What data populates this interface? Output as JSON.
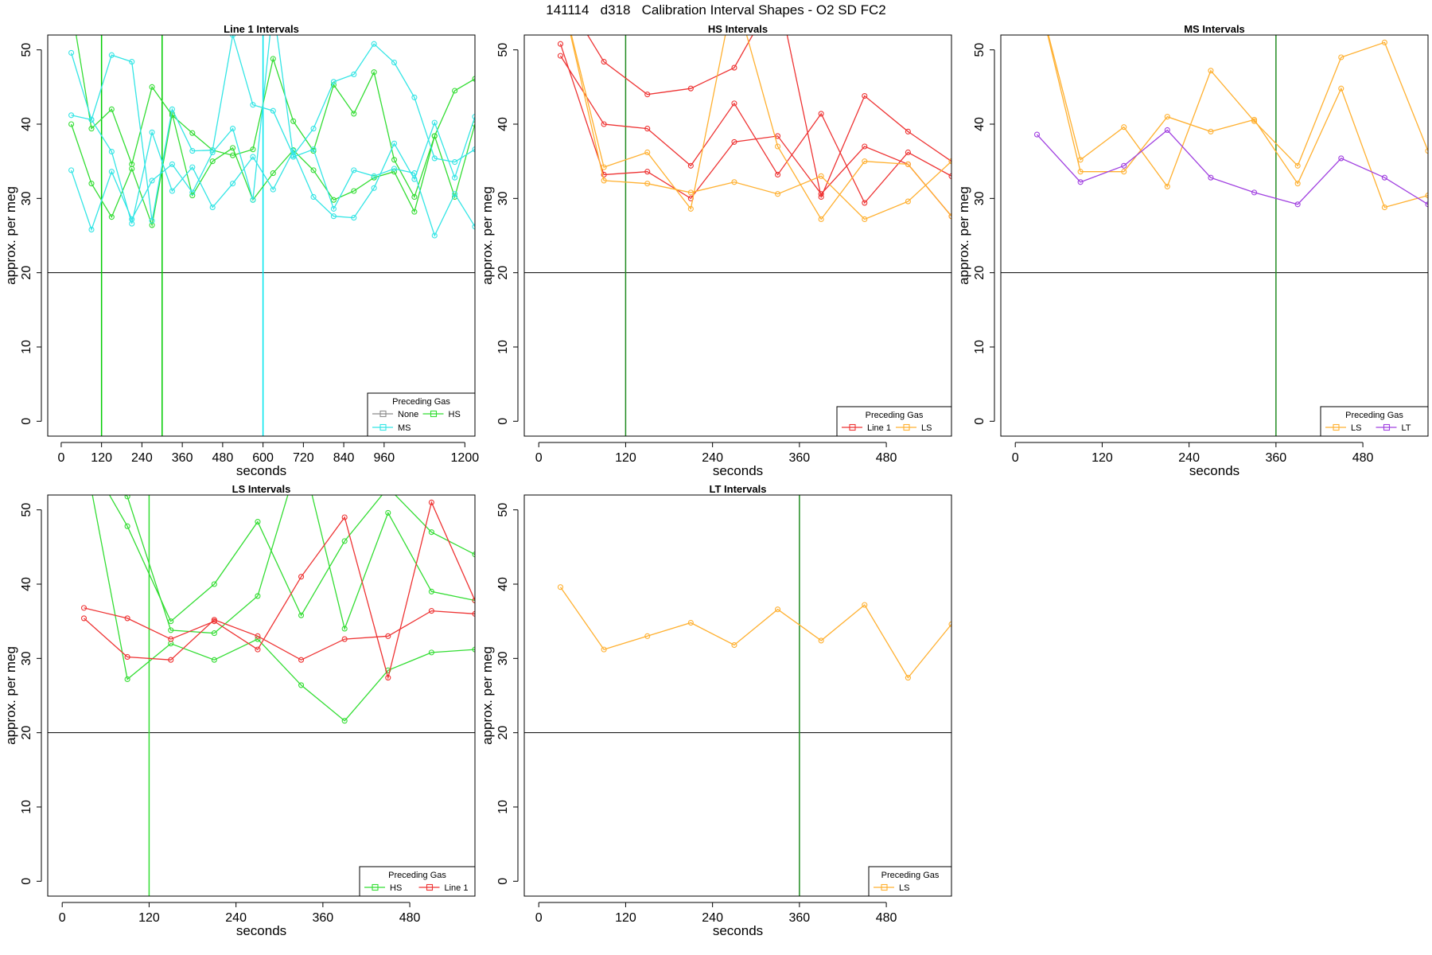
{
  "page_title": "141114   d318   Calibration Interval Shapes - O2 SD FC2",
  "chart_data": [
    {
      "type": "line",
      "title": "Line 1 Intervals",
      "xlabel": "seconds",
      "ylabel": "approx. per meg",
      "xlim": [
        -40,
        1230
      ],
      "ylim": [
        -2,
        52
      ],
      "xticks": [
        "0",
        "120",
        "240",
        "360",
        "480",
        "600",
        "720",
        "840",
        "960",
        "1200"
      ],
      "yticks": [
        "0",
        "10",
        "20",
        "30",
        "40",
        "50"
      ],
      "hline": 20,
      "vlines": [
        {
          "x": 120,
          "color": "#00cc00"
        },
        {
          "x": 300,
          "color": "#00cc00"
        },
        {
          "x": 600,
          "color": "#00e5ee"
        }
      ],
      "legend": {
        "title": "Preceding Gas",
        "position": "bottom-right",
        "columns": 2,
        "entries": [
          {
            "name": "None",
            "color": "#8c8c8c"
          },
          {
            "name": "HS",
            "color": "#33dd33"
          },
          {
            "name": "MS",
            "color": "#33e5e5"
          }
        ]
      },
      "series": [
        {
          "name": "HS",
          "color": "#33dd33",
          "x": [
            30,
            90,
            150,
            210,
            270,
            330,
            390,
            450,
            510,
            570,
            630,
            690,
            750,
            810,
            870,
            930,
            990,
            1050,
            1110,
            1170,
            1230
          ],
          "y": [
            40.0,
            32.0,
            27.5,
            34.0,
            26.4,
            41.4,
            30.4,
            35.0,
            36.8,
            29.8,
            33.4,
            36.5,
            33.8,
            29.8,
            31.0,
            32.8,
            33.6,
            28.2,
            38.4,
            44.5,
            46.1
          ]
        },
        {
          "name": "HS",
          "color": "#33dd33",
          "x": [
            30,
            90,
            150,
            210,
            270,
            330,
            390,
            450,
            510,
            570,
            630,
            690,
            750,
            810,
            870,
            930,
            990,
            1050,
            1110,
            1170,
            1230
          ],
          "y": [
            56.0,
            39.4,
            42.0,
            34.6,
            45.0,
            41.2,
            38.8,
            36.5,
            35.8,
            36.6,
            48.8,
            40.4,
            36.4,
            45.3,
            41.4,
            47.0,
            35.2,
            30.2,
            38.4,
            30.2,
            40.0
          ]
        },
        {
          "name": "MS",
          "color": "#33e5e5",
          "x": [
            30,
            90,
            150,
            210,
            270,
            330,
            390,
            450,
            510,
            570,
            630,
            690,
            750,
            810,
            870,
            930,
            990,
            1050,
            1110,
            1170,
            1230
          ],
          "y": [
            49.6,
            40.6,
            49.3,
            48.4,
            27.0,
            42.0,
            36.4,
            36.5,
            52.0,
            42.6,
            41.8,
            35.8,
            39.4,
            45.7,
            46.7,
            50.8,
            48.3,
            43.6,
            35.4,
            34.9,
            36.6
          ]
        },
        {
          "name": "MS",
          "color": "#33e5e5",
          "x": [
            30,
            90,
            150,
            210,
            270,
            330,
            390,
            450,
            510,
            570,
            630,
            690,
            750,
            810,
            870,
            930,
            990,
            1050,
            1110,
            1170,
            1230
          ],
          "y": [
            41.2,
            40.6,
            36.3,
            26.6,
            38.9,
            31.0,
            34.2,
            28.8,
            32.0,
            35.6,
            31.2,
            36.4,
            30.2,
            27.6,
            27.4,
            31.4,
            37.4,
            32.6,
            40.2,
            32.8,
            41.0
          ]
        },
        {
          "name": "MS",
          "color": "#33e5e5",
          "x": [
            30,
            90,
            150,
            210,
            270,
            330,
            390,
            450,
            510,
            570,
            630,
            690,
            750,
            810,
            870,
            930,
            990,
            1050,
            1110,
            1170,
            1230
          ],
          "y": [
            33.8,
            25.8,
            33.6,
            27.2,
            32.4,
            34.6,
            30.8,
            36.2,
            39.4,
            29.8,
            56.0,
            35.6,
            36.6,
            28.6,
            33.8,
            33.0,
            34.0,
            33.4,
            25.0,
            30.6,
            26.2
          ]
        }
      ]
    },
    {
      "type": "line",
      "title": "HS Intervals",
      "xlabel": "seconds",
      "ylabel": "approx. per meg",
      "xlim": [
        -20,
        570
      ],
      "ylim": [
        -2,
        52
      ],
      "xticks": [
        "0",
        "120",
        "240",
        "360",
        "480"
      ],
      "yticks": [
        "0",
        "10",
        "20",
        "30",
        "40",
        "50"
      ],
      "hline": 20,
      "vlines": [
        {
          "x": 120,
          "color": "#228b22"
        }
      ],
      "legend": {
        "title": "Preceding Gas",
        "position": "bottom-right",
        "columns": 2,
        "entries": [
          {
            "name": "Line 1",
            "color": "#ee3333"
          },
          {
            "name": "LS",
            "color": "#ffb030"
          }
        ]
      },
      "series": [
        {
          "name": "Line 1",
          "color": "#ee3333",
          "x": [
            30,
            90,
            150,
            210,
            270,
            330,
            390,
            450,
            510,
            570
          ],
          "y": [
            50.8,
            33.2,
            33.6,
            30.0,
            37.6,
            38.4,
            30.6,
            37.0,
            34.6,
            27.6
          ]
        },
        {
          "name": "Line 1",
          "color": "#ee3333",
          "x": [
            30,
            90,
            150,
            210,
            270,
            330,
            390,
            450,
            510,
            570
          ],
          "y": [
            49.2,
            40.0,
            39.4,
            34.4,
            42.8,
            33.2,
            41.4,
            29.4,
            36.2,
            33.0
          ]
        },
        {
          "name": "Line 1",
          "color": "#ee3333",
          "x": [
            30,
            90,
            150,
            210,
            270,
            330,
            390,
            450,
            510,
            570
          ],
          "y": [
            58.0,
            48.4,
            44.0,
            44.8,
            47.6,
            58.0,
            30.2,
            43.8,
            39.0,
            35.0
          ]
        },
        {
          "name": "LS",
          "color": "#ffb030",
          "x": [
            30,
            90,
            150,
            210,
            270,
            330,
            390,
            450,
            510,
            570
          ],
          "y": [
            58.0,
            32.4,
            32.0,
            30.8,
            32.2,
            30.6,
            33.0,
            27.2,
            29.6,
            35.0
          ]
        },
        {
          "name": "LS",
          "color": "#ffb030",
          "x": [
            30,
            90,
            150,
            210,
            270,
            330,
            390,
            450,
            510,
            570
          ],
          "y": [
            58.0,
            34.2,
            36.2,
            28.6,
            58.0,
            37.0,
            27.2,
            35.0,
            34.6,
            27.6
          ]
        }
      ]
    },
    {
      "type": "line",
      "title": "MS Intervals",
      "xlabel": "seconds",
      "ylabel": "approx. per meg",
      "xlim": [
        -20,
        570
      ],
      "ylim": [
        -2,
        52
      ],
      "xticks": [
        "0",
        "120",
        "240",
        "360",
        "480"
      ],
      "yticks": [
        "0",
        "10",
        "20",
        "30",
        "40",
        "50"
      ],
      "hline": 20,
      "vlines": [
        {
          "x": 360,
          "color": "#228b22"
        }
      ],
      "legend": {
        "title": "Preceding Gas",
        "position": "bottom-right",
        "columns": 2,
        "entries": [
          {
            "name": "LS",
            "color": "#ffb030"
          },
          {
            "name": "LT",
            "color": "#a040e0"
          }
        ]
      },
      "series": [
        {
          "name": "LS",
          "color": "#ffb030",
          "x": [
            30,
            90,
            150,
            210,
            270,
            330,
            390,
            450,
            510,
            570
          ],
          "y": [
            58.0,
            35.2,
            39.6,
            31.6,
            47.2,
            40.4,
            34.4,
            49.0,
            51.0,
            36.4
          ]
        },
        {
          "name": "LS",
          "color": "#ffb030",
          "x": [
            30,
            90,
            150,
            210,
            270,
            330,
            390,
            450,
            510,
            570
          ],
          "y": [
            58.0,
            33.6,
            33.6,
            41.0,
            39.0,
            40.6,
            32.0,
            44.8,
            28.8,
            30.4
          ]
        },
        {
          "name": "LT",
          "color": "#a040e0",
          "x": [
            30,
            90,
            150,
            210,
            270,
            330,
            390,
            450,
            510,
            570
          ],
          "y": [
            38.6,
            32.2,
            34.4,
            39.2,
            32.8,
            30.8,
            29.2,
            35.4,
            32.8,
            29.2
          ]
        }
      ]
    },
    {
      "type": "line",
      "title": "LS Intervals",
      "xlabel": "seconds",
      "ylabel": "approx. per meg",
      "xlim": [
        -20,
        570
      ],
      "ylim": [
        -2,
        52
      ],
      "xticks": [
        "0",
        "120",
        "240",
        "360",
        "480"
      ],
      "yticks": [
        "0",
        "10",
        "20",
        "30",
        "40",
        "50"
      ],
      "hline": 20,
      "vlines": [
        {
          "x": 120,
          "color": "#33dd33"
        }
      ],
      "legend": {
        "title": "Preceding Gas",
        "position": "bottom-right",
        "columns": 2,
        "entries": [
          {
            "name": "HS",
            "color": "#33dd33"
          },
          {
            "name": "Line 1",
            "color": "#ee3333"
          }
        ]
      },
      "series": [
        {
          "name": "HS",
          "color": "#33dd33",
          "x": [
            30,
            90,
            150,
            210,
            270,
            330,
            390,
            450,
            510,
            570
          ],
          "y": [
            58.0,
            27.2,
            32.0,
            29.8,
            32.6,
            26.4,
            21.6,
            28.4,
            30.8,
            31.2
          ]
        },
        {
          "name": "HS",
          "color": "#33dd33",
          "x": [
            30,
            90,
            150,
            210,
            270,
            330,
            390,
            450,
            510,
            570
          ],
          "y": [
            58.0,
            51.8,
            33.8,
            33.4,
            38.4,
            58.0,
            34.0,
            49.6,
            39.0,
            37.8
          ]
        },
        {
          "name": "HS",
          "color": "#33dd33",
          "x": [
            30,
            90,
            150,
            210,
            270,
            330,
            390,
            450,
            510,
            570
          ],
          "y": [
            58.0,
            47.8,
            35.0,
            40.0,
            48.4,
            35.8,
            45.8,
            53.0,
            47.0,
            44.0
          ]
        },
        {
          "name": "Line 1",
          "color": "#ee3333",
          "x": [
            30,
            90,
            150,
            210,
            270,
            330,
            390,
            450,
            510,
            570
          ],
          "y": [
            36.8,
            35.4,
            32.6,
            35.0,
            31.2,
            41.0,
            49.0,
            27.4,
            51.0,
            37.8
          ]
        },
        {
          "name": "Line 1",
          "color": "#ee3333",
          "x": [
            30,
            90,
            150,
            210,
            270,
            330,
            390,
            450,
            510,
            570
          ],
          "y": [
            35.4,
            30.2,
            29.8,
            35.2,
            33.0,
            29.8,
            32.6,
            33.0,
            36.4,
            36.0
          ]
        }
      ]
    },
    {
      "type": "line",
      "title": "LT Intervals",
      "xlabel": "seconds",
      "ylabel": "approx. per meg",
      "xlim": [
        -20,
        570
      ],
      "ylim": [
        -2,
        52
      ],
      "xticks": [
        "0",
        "120",
        "240",
        "360",
        "480"
      ],
      "yticks": [
        "0",
        "10",
        "20",
        "30",
        "40",
        "50"
      ],
      "hline": 20,
      "vlines": [
        {
          "x": 360,
          "color": "#228b22"
        }
      ],
      "legend": {
        "title": "Preceding Gas",
        "position": "bottom-right",
        "columns": 1,
        "entries": [
          {
            "name": "LS",
            "color": "#ffb030"
          }
        ]
      },
      "series": [
        {
          "name": "LS",
          "color": "#ffb030",
          "x": [
            30,
            90,
            150,
            210,
            270,
            330,
            390,
            450,
            510,
            570
          ],
          "y": [
            39.6,
            31.2,
            33.0,
            34.8,
            31.8,
            36.6,
            32.4,
            37.2,
            27.4,
            34.6
          ]
        }
      ]
    }
  ]
}
